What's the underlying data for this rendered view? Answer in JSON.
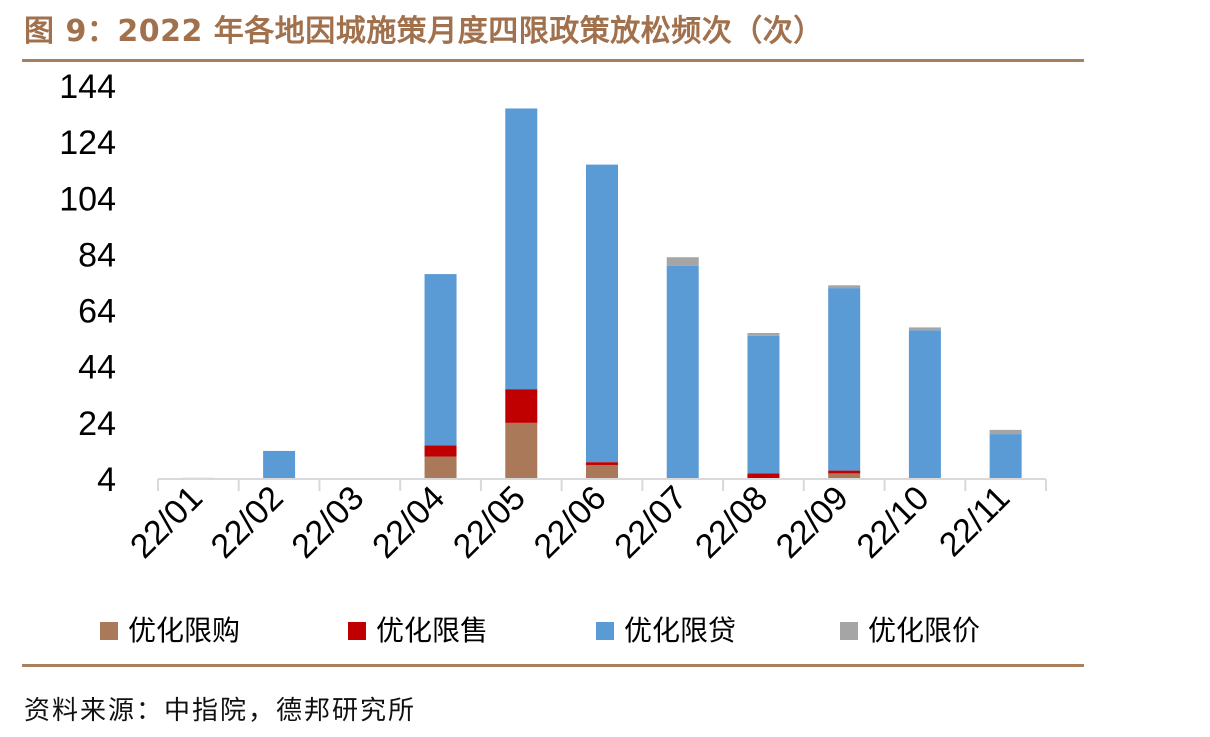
{
  "title": "图 9：2022 年各地因城施策月度四限政策放松频次（次）",
  "source": "资料来源：中指院，德邦研究所",
  "colors": {
    "rule": "#a8805e",
    "title": "#a0714c"
  },
  "chart_data": {
    "type": "bar",
    "stacked": true,
    "title": "2022 年各地因城施策月度四限政策放松频次（次）",
    "categories": [
      "22/01",
      "22/02",
      "22/03",
      "22/04",
      "22/05",
      "22/06",
      "22/07",
      "22/08",
      "22/09",
      "22/10",
      "22/11"
    ],
    "ylim": [
      4,
      144
    ],
    "yticks": [
      "4",
      "24",
      "44",
      "64",
      "84",
      "104",
      "124",
      "144"
    ],
    "legend_position": "bottom",
    "series": [
      {
        "name": "优化限购",
        "color": "#a9795a",
        "values": [
          0,
          0,
          0,
          8,
          20,
          5,
          0,
          0,
          2,
          0,
          0
        ]
      },
      {
        "name": "优化限售",
        "color": "#c00000",
        "values": [
          0,
          0,
          0,
          4,
          12,
          1,
          0,
          2,
          1,
          0,
          0
        ]
      },
      {
        "name": "优化限贷",
        "color": "#5b9bd5",
        "values": [
          0.4,
          10,
          0,
          61,
          100,
          106,
          76,
          49,
          65,
          53,
          16
        ]
      },
      {
        "name": "优化限价",
        "color": "#a5a5a5",
        "values": [
          0,
          0,
          0,
          0,
          0,
          0,
          3,
          1,
          1,
          1,
          1.5
        ]
      }
    ]
  }
}
